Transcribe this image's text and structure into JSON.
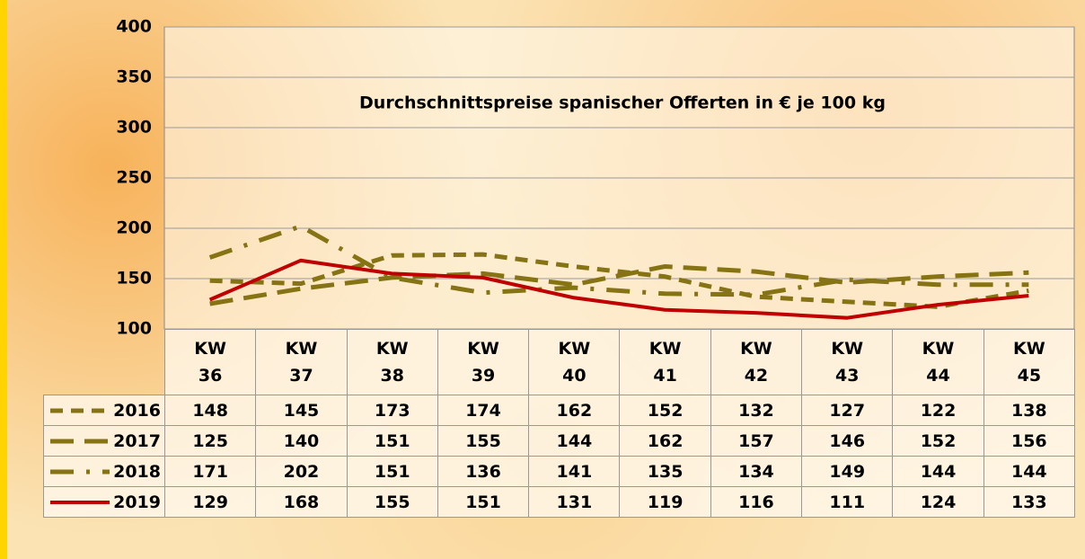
{
  "chart_data": {
    "type": "line",
    "title": "Durchschnittspreise spanischer Offerten in € je 100 kg",
    "categories": [
      "KW 36",
      "KW 37",
      "KW 38",
      "KW 39",
      "KW 40",
      "KW 41",
      "KW 42",
      "KW 43",
      "KW 44",
      "KW 45"
    ],
    "series": [
      {
        "name": "2016",
        "color": "#857314",
        "values": [
          148,
          145,
          173,
          174,
          162,
          152,
          132,
          127,
          122,
          138
        ]
      },
      {
        "name": "2017",
        "color": "#857314",
        "values": [
          125,
          140,
          151,
          155,
          144,
          162,
          157,
          146,
          152,
          156
        ]
      },
      {
        "name": "2018",
        "color": "#857314",
        "values": [
          171,
          202,
          151,
          136,
          141,
          135,
          134,
          149,
          144,
          144
        ]
      },
      {
        "name": "2019",
        "color": "#c00000",
        "values": [
          129,
          168,
          155,
          151,
          131,
          119,
          116,
          111,
          124,
          133
        ]
      }
    ],
    "ylim": [
      100,
      400
    ],
    "yticks": [
      100,
      150,
      200,
      250,
      300,
      350,
      400
    ],
    "grid": true
  }
}
